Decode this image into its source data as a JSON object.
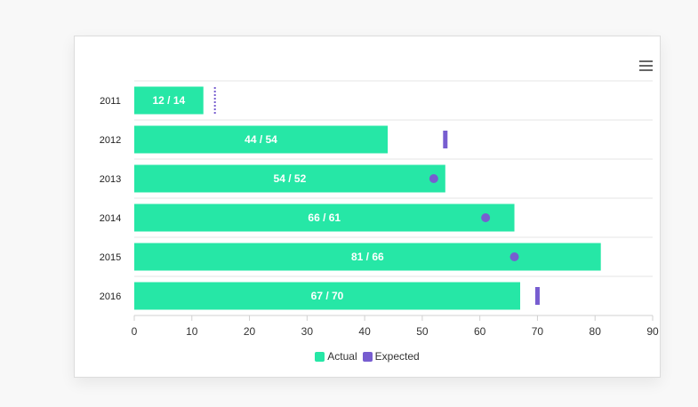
{
  "chart_data": {
    "type": "bar",
    "orientation": "horizontal",
    "categories": [
      "2011",
      "2012",
      "2013",
      "2014",
      "2015",
      "2016"
    ],
    "series": [
      {
        "name": "Actual",
        "values": [
          12,
          44,
          54,
          66,
          81,
          67
        ]
      },
      {
        "name": "Expected",
        "values": [
          14,
          54,
          52,
          61,
          66,
          70
        ],
        "markers": [
          "dotted-line",
          "bar",
          "circle",
          "circle",
          "circle",
          "bar"
        ]
      }
    ],
    "data_labels": [
      "12 / 14",
      "44 / 54",
      "54 / 52",
      "66 / 61",
      "81 / 66",
      "67 / 70"
    ],
    "xlim": [
      0,
      90
    ],
    "xticks": [
      0,
      10,
      20,
      30,
      40,
      50,
      60,
      70,
      80,
      90
    ],
    "grid": true,
    "legend_position": "bottom",
    "colors": {
      "actual": "#26e7a6",
      "expected": "#775dd0"
    }
  },
  "toolbar": {
    "menu_icon": "hamburger-menu-icon"
  }
}
